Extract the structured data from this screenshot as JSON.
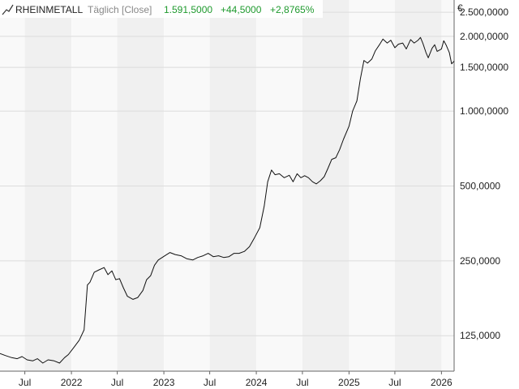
{
  "header": {
    "icon": "line-chart-icon",
    "symbol": "RHEINMETALL",
    "mode": "Täglich [Close]",
    "last": "1.591,5000",
    "change": "+44,5000",
    "change_pct": "+2,8765%",
    "change_color": "#1f9a2e"
  },
  "chart_data": {
    "type": "line",
    "currency": "€",
    "y_scale": "log",
    "ylim": [
      90,
      2800
    ],
    "xlim": [
      "2021-03-25",
      "2026-02-20"
    ],
    "grid": true,
    "line_color": "#111111",
    "y_ticks": [
      {
        "value": 125,
        "label": "125,0000"
      },
      {
        "value": 250,
        "label": "250,0000"
      },
      {
        "value": 500,
        "label": "500,0000"
      },
      {
        "value": 1000,
        "label": "1.000,0000"
      },
      {
        "value": 1500,
        "label": "1.500,0000"
      },
      {
        "value": 2000,
        "label": "2.000,0000"
      },
      {
        "value": 2500,
        "label": "2.500,0000"
      }
    ],
    "x_ticks": [
      {
        "date": "2021-07-01",
        "label": "Jul"
      },
      {
        "date": "2022-01-01",
        "label": "2022"
      },
      {
        "date": "2022-07-01",
        "label": "Jul"
      },
      {
        "date": "2023-01-01",
        "label": "2023"
      },
      {
        "date": "2023-07-01",
        "label": "Jul"
      },
      {
        "date": "2024-01-01",
        "label": "2024"
      },
      {
        "date": "2024-07-01",
        "label": "Jul"
      },
      {
        "date": "2025-01-01",
        "label": "2025"
      },
      {
        "date": "2025-07-01",
        "label": "Jul"
      },
      {
        "date": "2026-01-01",
        "label": "2026"
      }
    ],
    "series": [
      {
        "x": [
          "2021-03-25",
          "2021-04-15",
          "2021-05-10",
          "2021-06-01",
          "2021-06-20",
          "2021-07-10",
          "2021-08-01",
          "2021-08-20",
          "2021-09-10",
          "2021-10-01",
          "2021-10-25",
          "2021-11-15",
          "2021-12-05",
          "2021-12-20",
          "2022-01-10",
          "2022-02-01",
          "2022-02-20",
          "2022-02-28",
          "2022-03-05",
          "2022-03-15",
          "2022-04-01",
          "2022-04-20",
          "2022-05-10",
          "2022-05-25",
          "2022-06-10",
          "2022-06-25",
          "2022-07-10",
          "2022-07-25",
          "2022-08-10",
          "2022-09-01",
          "2022-09-20",
          "2022-10-10",
          "2022-10-25",
          "2022-11-10",
          "2022-11-25",
          "2022-12-10",
          "2023-01-05",
          "2023-01-25",
          "2023-02-15",
          "2023-03-10",
          "2023-04-01",
          "2023-04-25",
          "2023-05-15",
          "2023-06-05",
          "2023-06-25",
          "2023-07-15",
          "2023-08-05",
          "2023-08-25",
          "2023-09-15",
          "2023-10-05",
          "2023-10-25",
          "2023-11-15",
          "2023-12-05",
          "2023-12-25",
          "2024-01-15",
          "2024-02-01",
          "2024-02-15",
          "2024-03-01",
          "2024-03-15",
          "2024-04-01",
          "2024-04-20",
          "2024-05-10",
          "2024-05-25",
          "2024-06-10",
          "2024-06-25",
          "2024-07-10",
          "2024-07-25",
          "2024-08-10",
          "2024-08-25",
          "2024-09-10",
          "2024-09-25",
          "2024-10-10",
          "2024-10-25",
          "2024-11-10",
          "2024-11-25",
          "2024-12-10",
          "2025-01-01",
          "2025-01-15",
          "2025-02-01",
          "2025-02-15",
          "2025-03-01",
          "2025-03-15",
          "2025-04-01",
          "2025-04-15",
          "2025-05-01",
          "2025-05-15",
          "2025-06-01",
          "2025-06-15",
          "2025-07-01",
          "2025-07-15",
          "2025-08-01",
          "2025-08-15",
          "2025-09-01",
          "2025-09-15",
          "2025-10-01",
          "2025-10-10",
          "2025-10-20",
          "2025-11-01",
          "2025-11-10",
          "2025-11-25",
          "2025-12-05",
          "2025-12-15",
          "2026-01-01",
          "2026-01-10",
          "2026-01-20",
          "2026-02-01",
          "2026-02-10",
          "2026-02-20"
        ],
        "y": [
          106,
          104,
          102,
          101,
          103,
          100,
          99,
          101,
          97,
          100,
          99,
          97,
          102,
          105,
          112,
          120,
          132,
          170,
          200,
          205,
          225,
          230,
          235,
          220,
          228,
          210,
          212,
          195,
          180,
          175,
          178,
          190,
          210,
          218,
          240,
          252,
          262,
          270,
          265,
          262,
          255,
          252,
          258,
          262,
          268,
          260,
          262,
          258,
          260,
          268,
          268,
          273,
          285,
          310,
          340,
          415,
          520,
          580,
          555,
          560,
          540,
          552,
          520,
          560,
          540,
          550,
          540,
          520,
          510,
          525,
          545,
          590,
          640,
          650,
          700,
          770,
          870,
          1000,
          1100,
          1350,
          1600,
          1560,
          1620,
          1750,
          1850,
          1950,
          1880,
          1930,
          1800,
          1860,
          1880,
          1780,
          1940,
          1880,
          1930,
          1980,
          1870,
          1720,
          1640,
          1790,
          1850,
          1740,
          1780,
          1920,
          1840,
          1720,
          1550,
          1590
        ]
      }
    ]
  }
}
